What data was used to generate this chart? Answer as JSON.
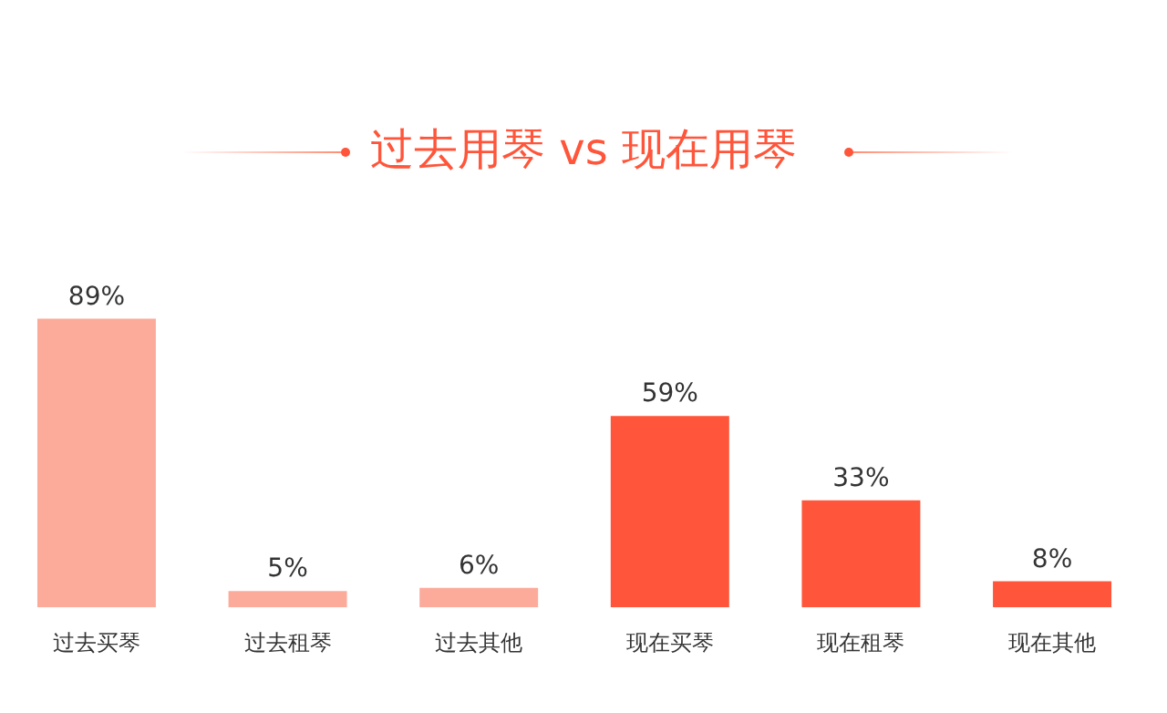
{
  "chart_data": {
    "type": "bar",
    "title": "过去用琴 vs 现在用琴",
    "categories": [
      "过去买琴",
      "过去租琴",
      "过去其他",
      "现在买琴",
      "现在租琴",
      "现在其他"
    ],
    "values": [
      89,
      5,
      6,
      59,
      33,
      8
    ],
    "colors": [
      "#fcab9b",
      "#fcab9b",
      "#fcab9b",
      "#ff553a",
      "#ff553a",
      "#ff553a"
    ],
    "value_labels": [
      "89%",
      "5%",
      "6%",
      "59%",
      "33%",
      "8%"
    ],
    "grid": false
  }
}
